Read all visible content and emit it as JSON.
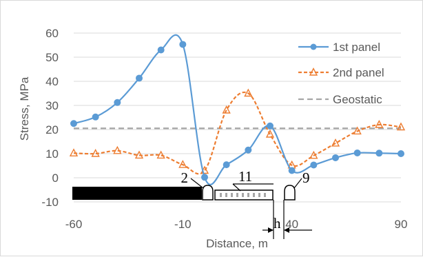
{
  "chart_data": {
    "type": "line",
    "xlabel": "Distance, m",
    "ylabel": "Stress, MPa",
    "xlim": [
      -60,
      90
    ],
    "ylim": [
      -10,
      60
    ],
    "x_ticks": [
      -60,
      -10,
      40,
      90
    ],
    "y_ticks": [
      -10,
      0,
      10,
      20,
      30,
      40,
      50,
      60
    ],
    "grid": "horizontal major gridlines",
    "legend_position": "right",
    "series": [
      {
        "name": "1st panel",
        "color": "#5b9bd5",
        "line_style": "solid",
        "marker": "circle",
        "x": [
          -60,
          -50,
          -40,
          -30,
          -20,
          -10,
          0,
          10,
          20,
          30,
          40,
          50,
          60,
          70,
          80,
          90
        ],
        "y": [
          22.5,
          25.2,
          31.2,
          41.3,
          53.0,
          55.3,
          0.2,
          5.4,
          11.5,
          21.5,
          3.0,
          5.3,
          8.3,
          10.3,
          10.2,
          10.0
        ]
      },
      {
        "name": "2nd panel",
        "color": "#ed7d31",
        "line_style": "dashed",
        "marker": "triangle",
        "x": [
          -60,
          -50,
          -40,
          -30,
          -20,
          -10,
          0,
          10,
          20,
          30,
          40,
          50,
          60,
          70,
          80,
          90
        ],
        "y": [
          10.2,
          10.0,
          11.2,
          9.3,
          9.3,
          5.4,
          3.0,
          28.0,
          35.0,
          18.0,
          5.2,
          9.2,
          14.3,
          19.3,
          22.0,
          21.0
        ]
      },
      {
        "name": "Geostatic",
        "color": "#a6a6a6",
        "line_style": "dashed",
        "marker": "none",
        "x": [
          -60,
          90
        ],
        "y": [
          20.5,
          20.5
        ]
      }
    ],
    "annotations": {
      "label_2": "2",
      "label_11": "11",
      "label_9": "9",
      "label_h": "h"
    }
  }
}
